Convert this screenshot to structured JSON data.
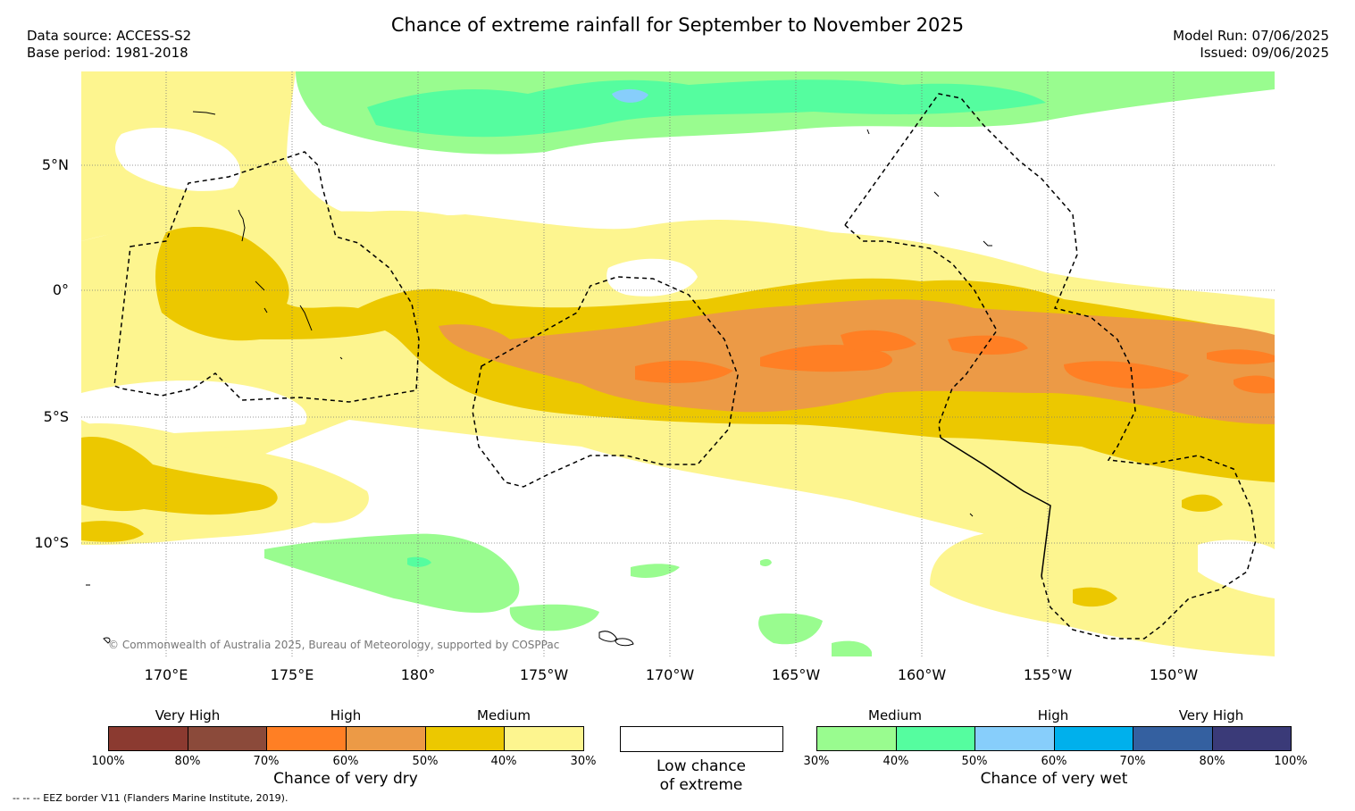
{
  "header": {
    "title": "Chance of extreme rainfall for September to November 2025",
    "data_source": "Data source: ACCESS-S2",
    "base_period": "Base period: 1981-2018",
    "model_run": "Model Run: 07/06/2025",
    "issued": "Issued: 09/06/2025"
  },
  "map": {
    "lat_labels": [
      "5°N",
      "0°",
      "5°S",
      "10°S"
    ],
    "lon_labels": [
      "170°E",
      "175°E",
      "180°",
      "175°W",
      "170°W",
      "165°W",
      "160°W",
      "155°W",
      "150°W"
    ],
    "copyright": "© Commonwealth of Australia 2025, Bureau of Meteorology, supported by COSPPac"
  },
  "legend_dry": {
    "categories": [
      "Very High",
      "High",
      "Medium"
    ],
    "percent_labels": [
      "100%",
      "80%",
      "70%",
      "60%",
      "50%",
      "40%",
      "30%"
    ],
    "caption": "Chance of very dry",
    "colors": [
      "#8b3a30",
      "#8b4a3a",
      "#ff7f24",
      "#ec9a46",
      "#ecc800",
      "#fdf58f"
    ]
  },
  "legend_low": {
    "line1": "Low chance",
    "line2": "of extreme",
    "color": "#ffffff"
  },
  "legend_wet": {
    "categories": [
      "Medium",
      "High",
      "Very High"
    ],
    "percent_labels": [
      "30%",
      "40%",
      "50%",
      "60%",
      "70%",
      "80%",
      "100%"
    ],
    "caption": "Chance of very wet",
    "colors": [
      "#99fc8f",
      "#55fd9f",
      "#87cefb",
      "#00b0ec",
      "#3460a0",
      "#3a3a78"
    ]
  },
  "footer": {
    "eez_note": "--  --  -- EEZ border V11 (Flanders Marine Institute, 2019)."
  }
}
